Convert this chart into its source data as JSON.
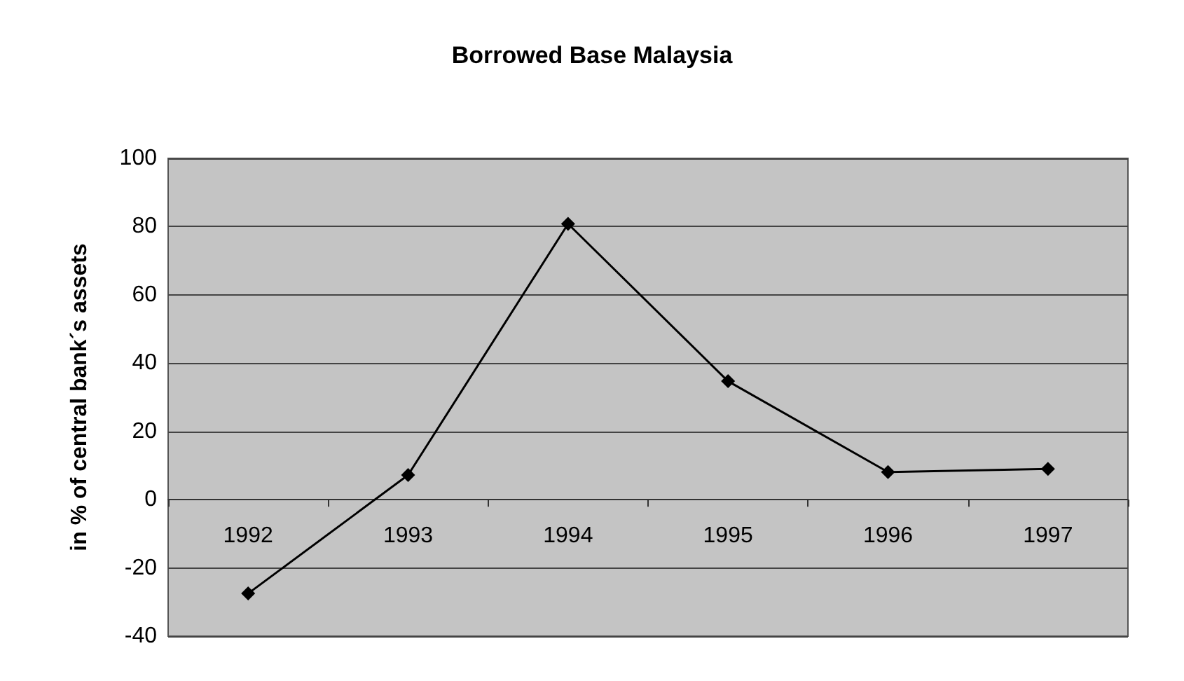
{
  "chart_data": {
    "type": "line",
    "title": "Borrowed Base Malaysia",
    "ylabel": "in % of central bank´s assets",
    "categories": [
      "1992",
      "1993",
      "1994",
      "1995",
      "1996",
      "1997"
    ],
    "series": [
      {
        "color": "#000000",
        "values": [
          -27.5,
          7.2,
          80.8,
          34.7,
          8.1,
          9.0
        ]
      }
    ],
    "ylim": [
      -40,
      100
    ],
    "yticks": [
      -40,
      -20,
      0,
      20,
      40,
      60,
      80,
      100
    ],
    "grid": "y",
    "marker": "diamond",
    "line_style": "solid"
  }
}
